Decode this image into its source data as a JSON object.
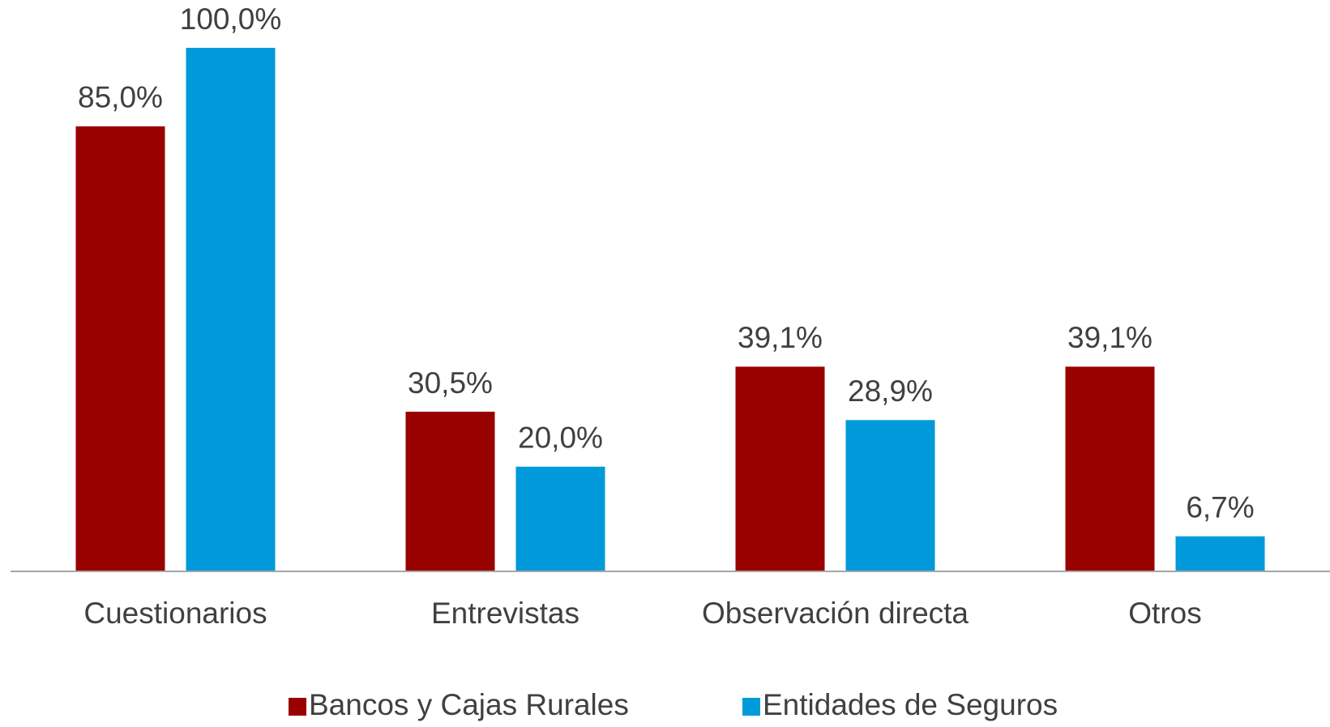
{
  "chart_data": {
    "type": "bar",
    "categories": [
      "Cuestionarios",
      "Entrevistas",
      "Observación directa",
      "Otros"
    ],
    "series": [
      {
        "name": "Bancos y Cajas Rurales",
        "color": "#990000",
        "values": [
          85.0,
          30.5,
          39.1,
          39.1
        ],
        "value_labels": [
          "85,0%",
          "30,5%",
          "39,1%",
          "39,1%"
        ]
      },
      {
        "name": "Entidades de Seguros",
        "color": "#009ADA",
        "values": [
          100.0,
          20.0,
          28.9,
          6.7
        ],
        "value_labels": [
          "100,0%",
          "20,0%",
          "28,9%",
          "6,7%"
        ]
      }
    ],
    "ylim": [
      0,
      100
    ],
    "grid": false,
    "legend": "bottom"
  }
}
